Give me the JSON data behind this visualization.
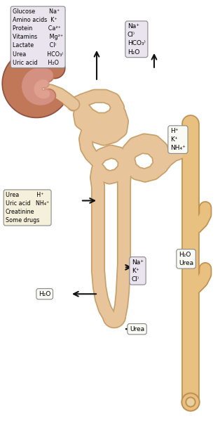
{
  "fig_width": 3.14,
  "fig_height": 5.99,
  "dpi": 100,
  "bg_color": "#ffffff",
  "tubule_color": "#E8C49A",
  "tubule_edge_color": "#C8A06A",
  "glom_outer_color": "#C07858",
  "glom_inner_color": "#D49080",
  "glom_fill": "#B86848",
  "box_purple_color": "#EAE4EE",
  "box_yellow_color": "#F5F0DC",
  "box_white_color": "#FAFAF5",
  "arrow_color": "#111111",
  "proximal_text": "Glucose        Na⁺\nAmino acids  K⁺\nProtein         Ca²⁺\nVitamins       Mg²⁺\nLactate         Cl⁾\nUrea            HCO₃⁾\nUric acid      H₂O",
  "distal_text": "Na⁺\nCl⁾\nHCO₃⁾\nH₂O",
  "late_distal_text": "H⁺\nK⁺\nNH₄⁺",
  "loop_left_text": "Urea          H⁺\nUric acid   NH₄⁺\nCreatinine\nSome drugs",
  "loop_right_text": "Na⁺\nK⁺\nCl⁾",
  "desc_text": "H₂O",
  "coll_h2o_text": "H₂O\nUrea",
  "coll_urea_text": "Urea"
}
